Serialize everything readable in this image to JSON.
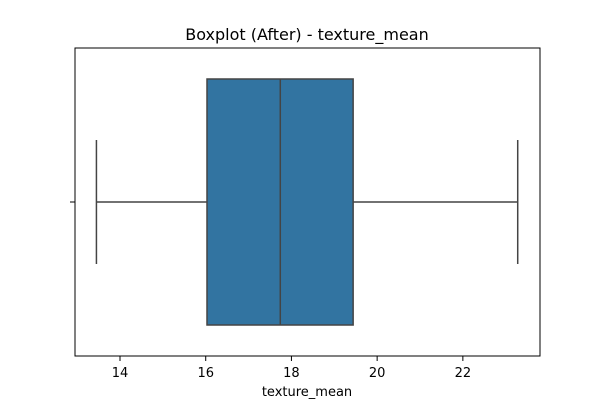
{
  "chart_data": {
    "type": "box",
    "title": "Boxplot (After) - texture_mean",
    "xlabel": "texture_mean",
    "ylabel": "",
    "orientation": "horizontal",
    "xlim": [
      12.95,
      23.8
    ],
    "xticks": [
      14,
      16,
      18,
      20,
      22
    ],
    "grid": false,
    "series": [
      {
        "whisker_low": 13.45,
        "q1": 16.03,
        "median": 17.74,
        "q3": 19.44,
        "whisker_high": 23.28
      }
    ],
    "colors": {
      "box_fill": "#3274a1",
      "box_edge": "#444444",
      "axes": "#000000"
    }
  }
}
